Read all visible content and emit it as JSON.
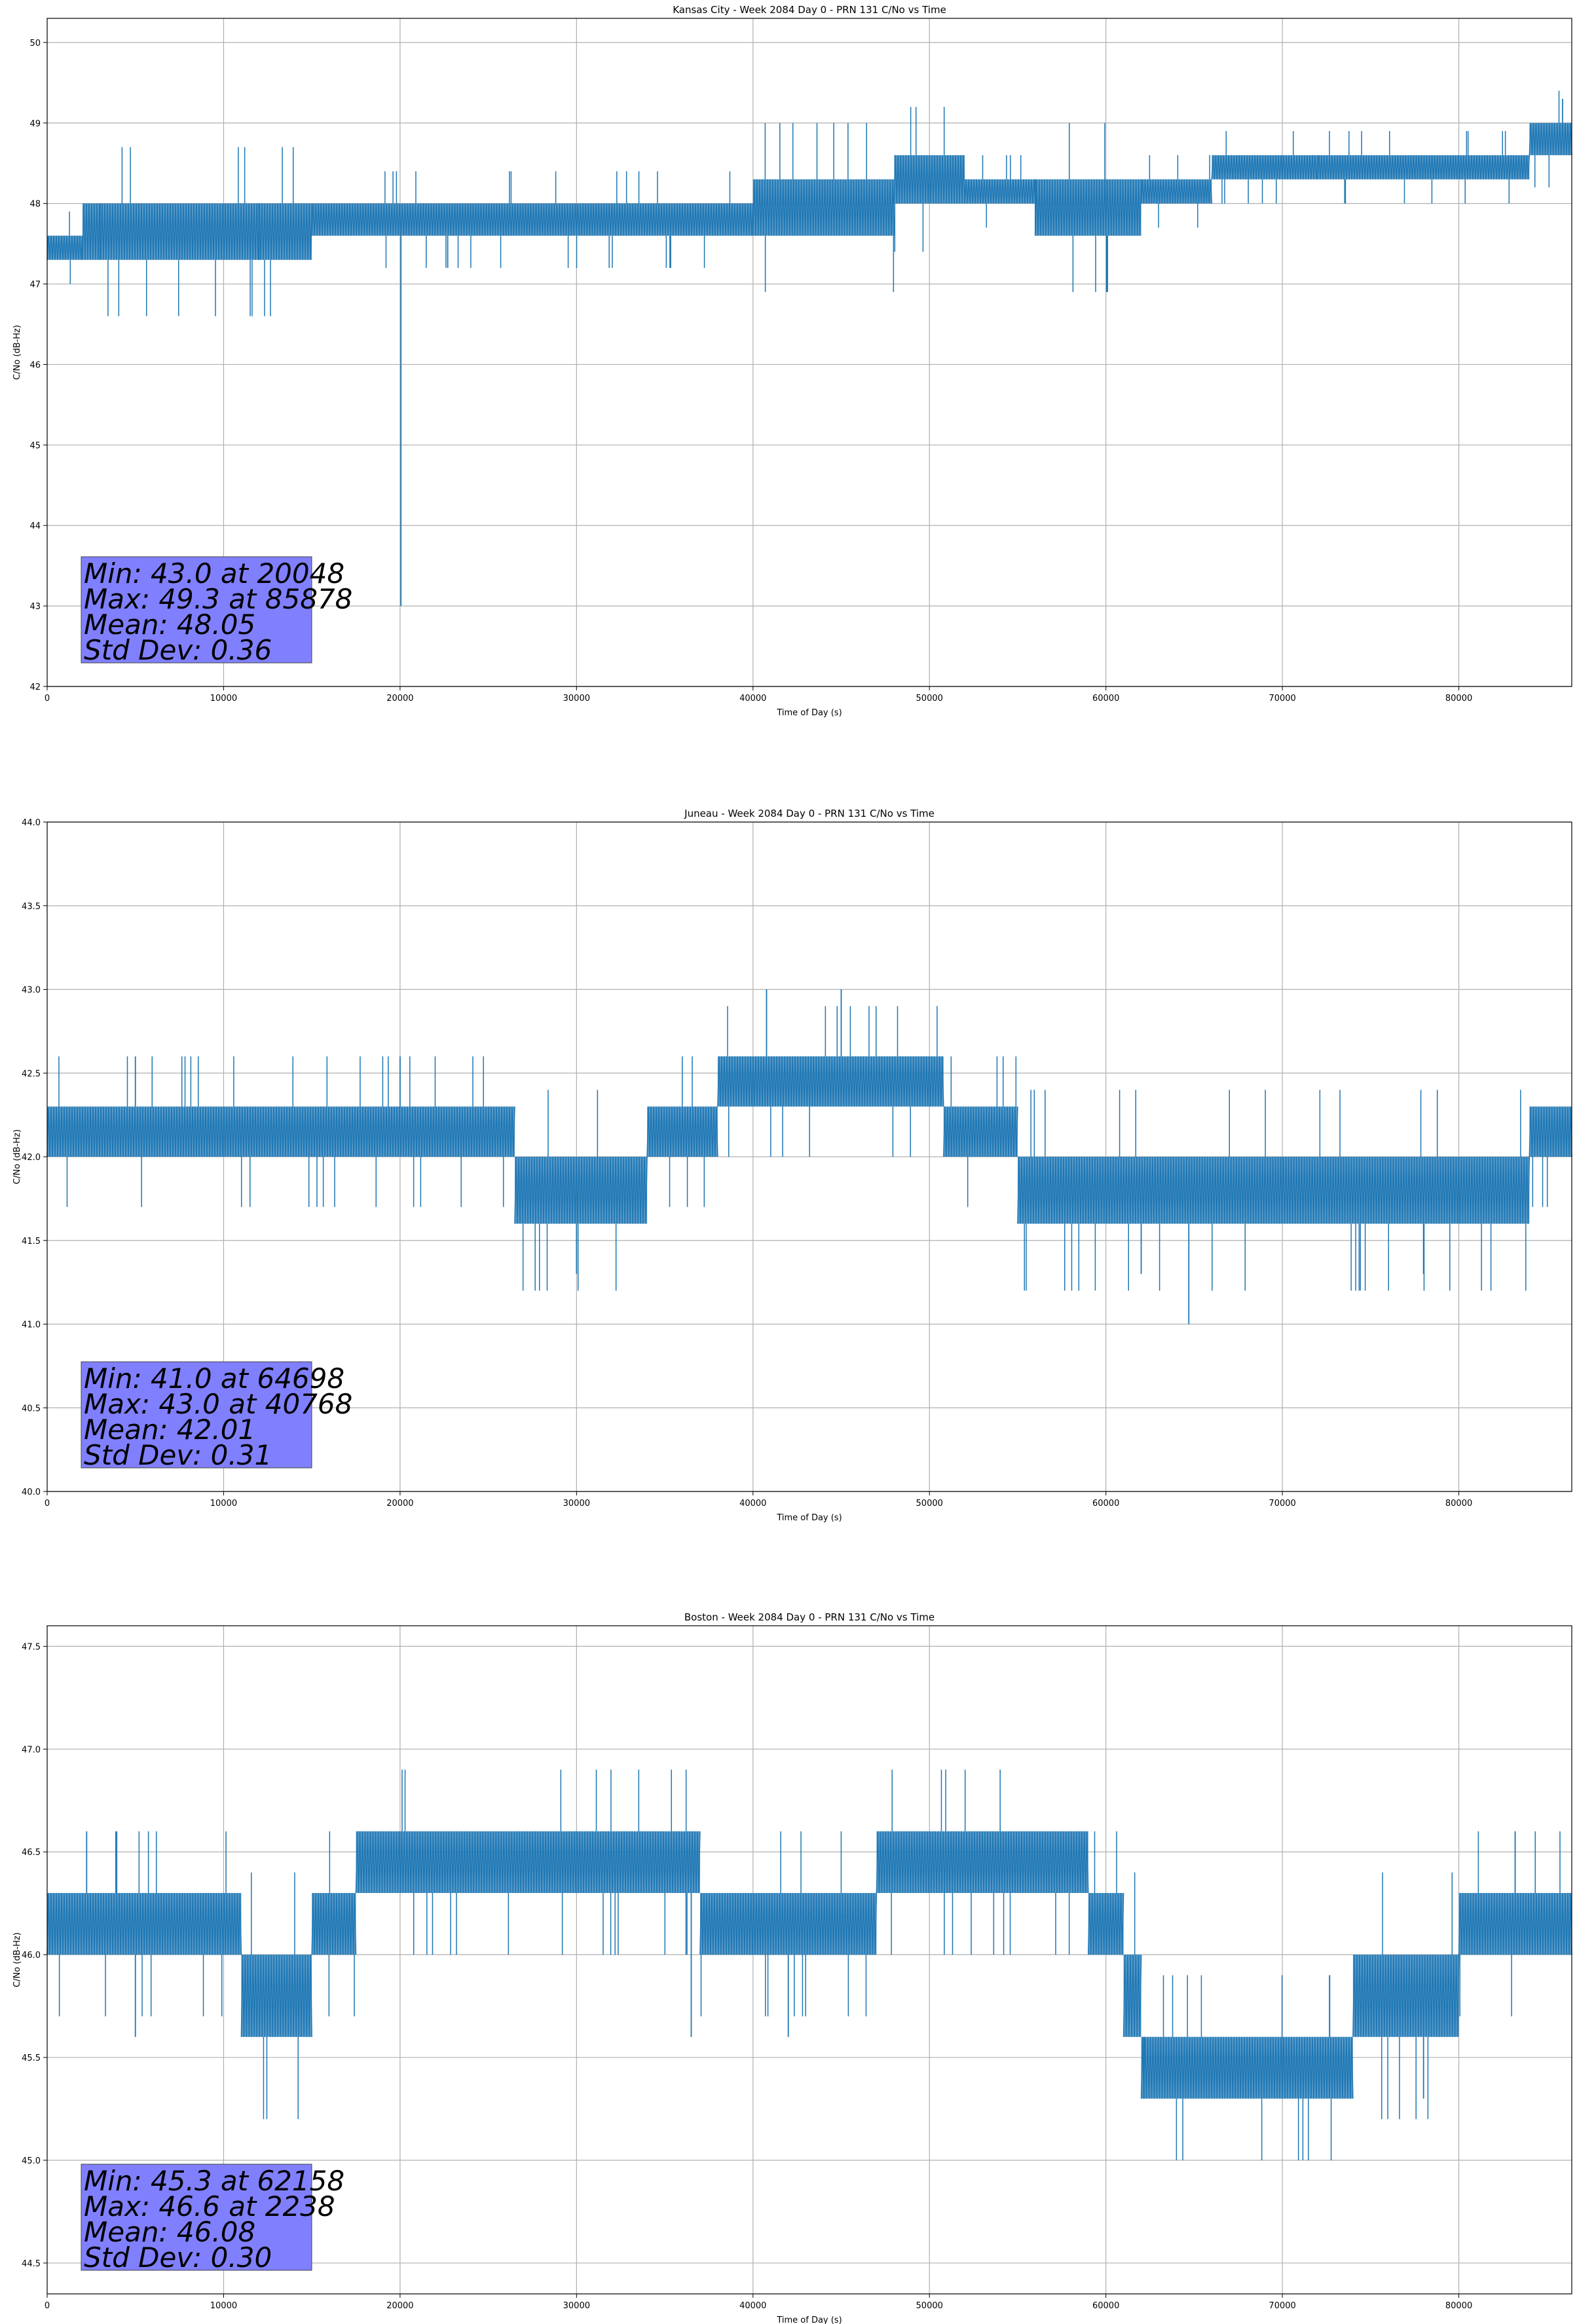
{
  "chart_data": [
    {
      "type": "line",
      "title": "Kansas City - Week 2084 Day 0 - PRN 131 C/No vs Time",
      "xlabel": "Time of Day (s)",
      "ylabel": "C/No (dB-Hz)",
      "xlim": [
        0,
        86400
      ],
      "ylim": [
        42,
        50.3
      ],
      "xticks": [
        0,
        10000,
        20000,
        30000,
        40000,
        50000,
        60000,
        70000,
        80000
      ],
      "xtick_labels": [
        "0",
        "10000",
        "20000",
        "30000",
        "40000",
        "50000",
        "60000",
        "70000",
        "80000"
      ],
      "yticks": [
        42,
        43,
        44,
        45,
        46,
        47,
        48,
        49,
        50
      ],
      "ytick_labels": [
        "42",
        "43",
        "44",
        "45",
        "46",
        "47",
        "48",
        "49",
        "50"
      ],
      "grid": true,
      "line_color": "#1f77b4",
      "series": [
        {
          "segments": [
            {
              "x": [
                0,
                2000
              ],
              "y": [
                47.3,
                47.6
              ]
            },
            {
              "x": [
                2000,
                15000
              ],
              "y": [
                47.3,
                48.0
              ]
            },
            {
              "x": [
                15000,
                26000
              ],
              "y": [
                47.6,
                48.0
              ]
            },
            {
              "x": [
                26000,
                40000
              ],
              "y": [
                47.6,
                48.0
              ]
            },
            {
              "x": [
                40000,
                48000
              ],
              "y": [
                47.6,
                48.3
              ]
            },
            {
              "x": [
                48000,
                52000
              ],
              "y": [
                48.0,
                48.6
              ]
            },
            {
              "x": [
                52000,
                56000
              ],
              "y": [
                48.0,
                48.3
              ]
            },
            {
              "x": [
                56000,
                62000
              ],
              "y": [
                47.6,
                48.3
              ]
            },
            {
              "x": [
                62000,
                66000
              ],
              "y": [
                48.0,
                48.3
              ]
            },
            {
              "x": [
                66000,
                72000
              ],
              "y": [
                48.3,
                48.6
              ]
            },
            {
              "x": [
                72000,
                79000
              ],
              "y": [
                48.3,
                48.6
              ]
            },
            {
              "x": [
                79000,
                84000
              ],
              "y": [
                48.3,
                48.6
              ]
            },
            {
              "x": [
                84000,
                86400
              ],
              "y": [
                48.6,
                49.0
              ]
            }
          ],
          "spikes": [
            [
              20048,
              43.0
            ],
            [
              85878,
              49.3
            ],
            [
              56000,
              47.6
            ],
            [
              3000,
              47.3
            ],
            [
              12000,
              47.3
            ]
          ]
        }
      ],
      "stats": {
        "min": "Min: 43.0 at 20048",
        "max": "Max: 49.3 at 85878",
        "mean": "Mean: 48.05",
        "std": "Std Dev: 0.36"
      },
      "stats_box_color": "#8080ff"
    },
    {
      "type": "line",
      "title": "Juneau - Week 2084 Day 0 - PRN 131 C/No vs Time",
      "xlabel": "Time of Day (s)",
      "ylabel": "C/No (dB-Hz)",
      "xlim": [
        0,
        86400
      ],
      "ylim": [
        40,
        44
      ],
      "xticks": [
        0,
        10000,
        20000,
        30000,
        40000,
        50000,
        60000,
        70000,
        80000
      ],
      "xtick_labels": [
        "0",
        "10000",
        "20000",
        "30000",
        "40000",
        "50000",
        "60000",
        "70000",
        "80000"
      ],
      "yticks": [
        40,
        40.5,
        41,
        41.5,
        42,
        42.5,
        43,
        43.5,
        44
      ],
      "ytick_labels": [
        "40.0",
        "40.5",
        "41.0",
        "41.5",
        "42.0",
        "42.5",
        "43.0",
        "43.5",
        "44.0"
      ],
      "grid": true,
      "line_color": "#1f77b4",
      "series": [
        {
          "segments": [
            {
              "x": [
                0,
                26500
              ],
              "y": [
                42.0,
                42.3
              ]
            },
            {
              "x": [
                26500,
                34000
              ],
              "y": [
                41.6,
                42.0
              ]
            },
            {
              "x": [
                34000,
                38000
              ],
              "y": [
                42.0,
                42.3
              ]
            },
            {
              "x": [
                38000,
                50800
              ],
              "y": [
                42.3,
                42.6
              ]
            },
            {
              "x": [
                50800,
                55000
              ],
              "y": [
                42.0,
                42.3
              ]
            },
            {
              "x": [
                55000,
                84000
              ],
              "y": [
                41.6,
                42.0
              ]
            },
            {
              "x": [
                84000,
                86400
              ],
              "y": [
                42.0,
                42.3
              ]
            }
          ],
          "spikes": [
            [
              64698,
              41.0
            ],
            [
              40768,
              43.0
            ],
            [
              45000,
              43.0
            ],
            [
              30000,
              41.3
            ],
            [
              62000,
              41.3
            ],
            [
              78000,
              41.3
            ],
            [
              5000,
              42.6
            ],
            [
              20000,
              42.6
            ]
          ]
        }
      ],
      "stats": {
        "min": "Min: 41.0 at 64698",
        "max": "Max: 43.0 at 40768",
        "mean": "Mean: 42.01",
        "std": "Std Dev: 0.31"
      },
      "stats_box_color": "#8080ff"
    },
    {
      "type": "line",
      "title": "Boston - Week 2084 Day 0 - PRN 131 C/No vs Time",
      "xlabel": "Time of Day (s)",
      "ylabel": "C/No (dB-Hz)",
      "xlim": [
        0,
        86400
      ],
      "ylim": [
        44.35,
        47.6
      ],
      "xticks": [
        0,
        10000,
        20000,
        30000,
        40000,
        50000,
        60000,
        70000,
        80000
      ],
      "xtick_labels": [
        "0",
        "10000",
        "20000",
        "30000",
        "40000",
        "50000",
        "60000",
        "70000",
        "80000"
      ],
      "yticks": [
        44.5,
        45.0,
        45.5,
        46.0,
        46.5,
        47.0,
        47.5
      ],
      "ytick_labels": [
        "44.5",
        "45.0",
        "45.5",
        "46.0",
        "46.5",
        "47.0",
        "47.5"
      ],
      "grid": true,
      "line_color": "#1f77b4",
      "series": [
        {
          "segments": [
            {
              "x": [
                0,
                11000
              ],
              "y": [
                46.0,
                46.3
              ]
            },
            {
              "x": [
                11000,
                15000
              ],
              "y": [
                45.6,
                46.0
              ]
            },
            {
              "x": [
                15000,
                17500
              ],
              "y": [
                46.0,
                46.3
              ]
            },
            {
              "x": [
                17500,
                37000
              ],
              "y": [
                46.3,
                46.6
              ]
            },
            {
              "x": [
                37000,
                47000
              ],
              "y": [
                46.0,
                46.3
              ]
            },
            {
              "x": [
                47000,
                59000
              ],
              "y": [
                46.3,
                46.6
              ]
            },
            {
              "x": [
                59000,
                61000
              ],
              "y": [
                46.0,
                46.3
              ]
            },
            {
              "x": [
                61000,
                62000
              ],
              "y": [
                45.6,
                46.0
              ]
            },
            {
              "x": [
                62000,
                74000
              ],
              "y": [
                45.3,
                45.6
              ]
            },
            {
              "x": [
                74000,
                80000
              ],
              "y": [
                45.6,
                46.0
              ]
            },
            {
              "x": [
                80000,
                86400
              ],
              "y": [
                46.0,
                46.3
              ]
            }
          ],
          "spikes": [
            [
              62158,
              45.3
            ],
            [
              2238,
              46.6
            ],
            [
              5000,
              45.6
            ],
            [
              36500,
              45.6
            ],
            [
              42000,
              45.6
            ],
            [
              78000,
              45.3
            ]
          ]
        }
      ],
      "stats": {
        "min": "Min: 45.3 at 62158",
        "max": "Max: 46.6 at 2238",
        "mean": "Mean: 46.08",
        "std": "Std Dev: 0.30"
      },
      "stats_box_color": "#8080ff"
    }
  ]
}
